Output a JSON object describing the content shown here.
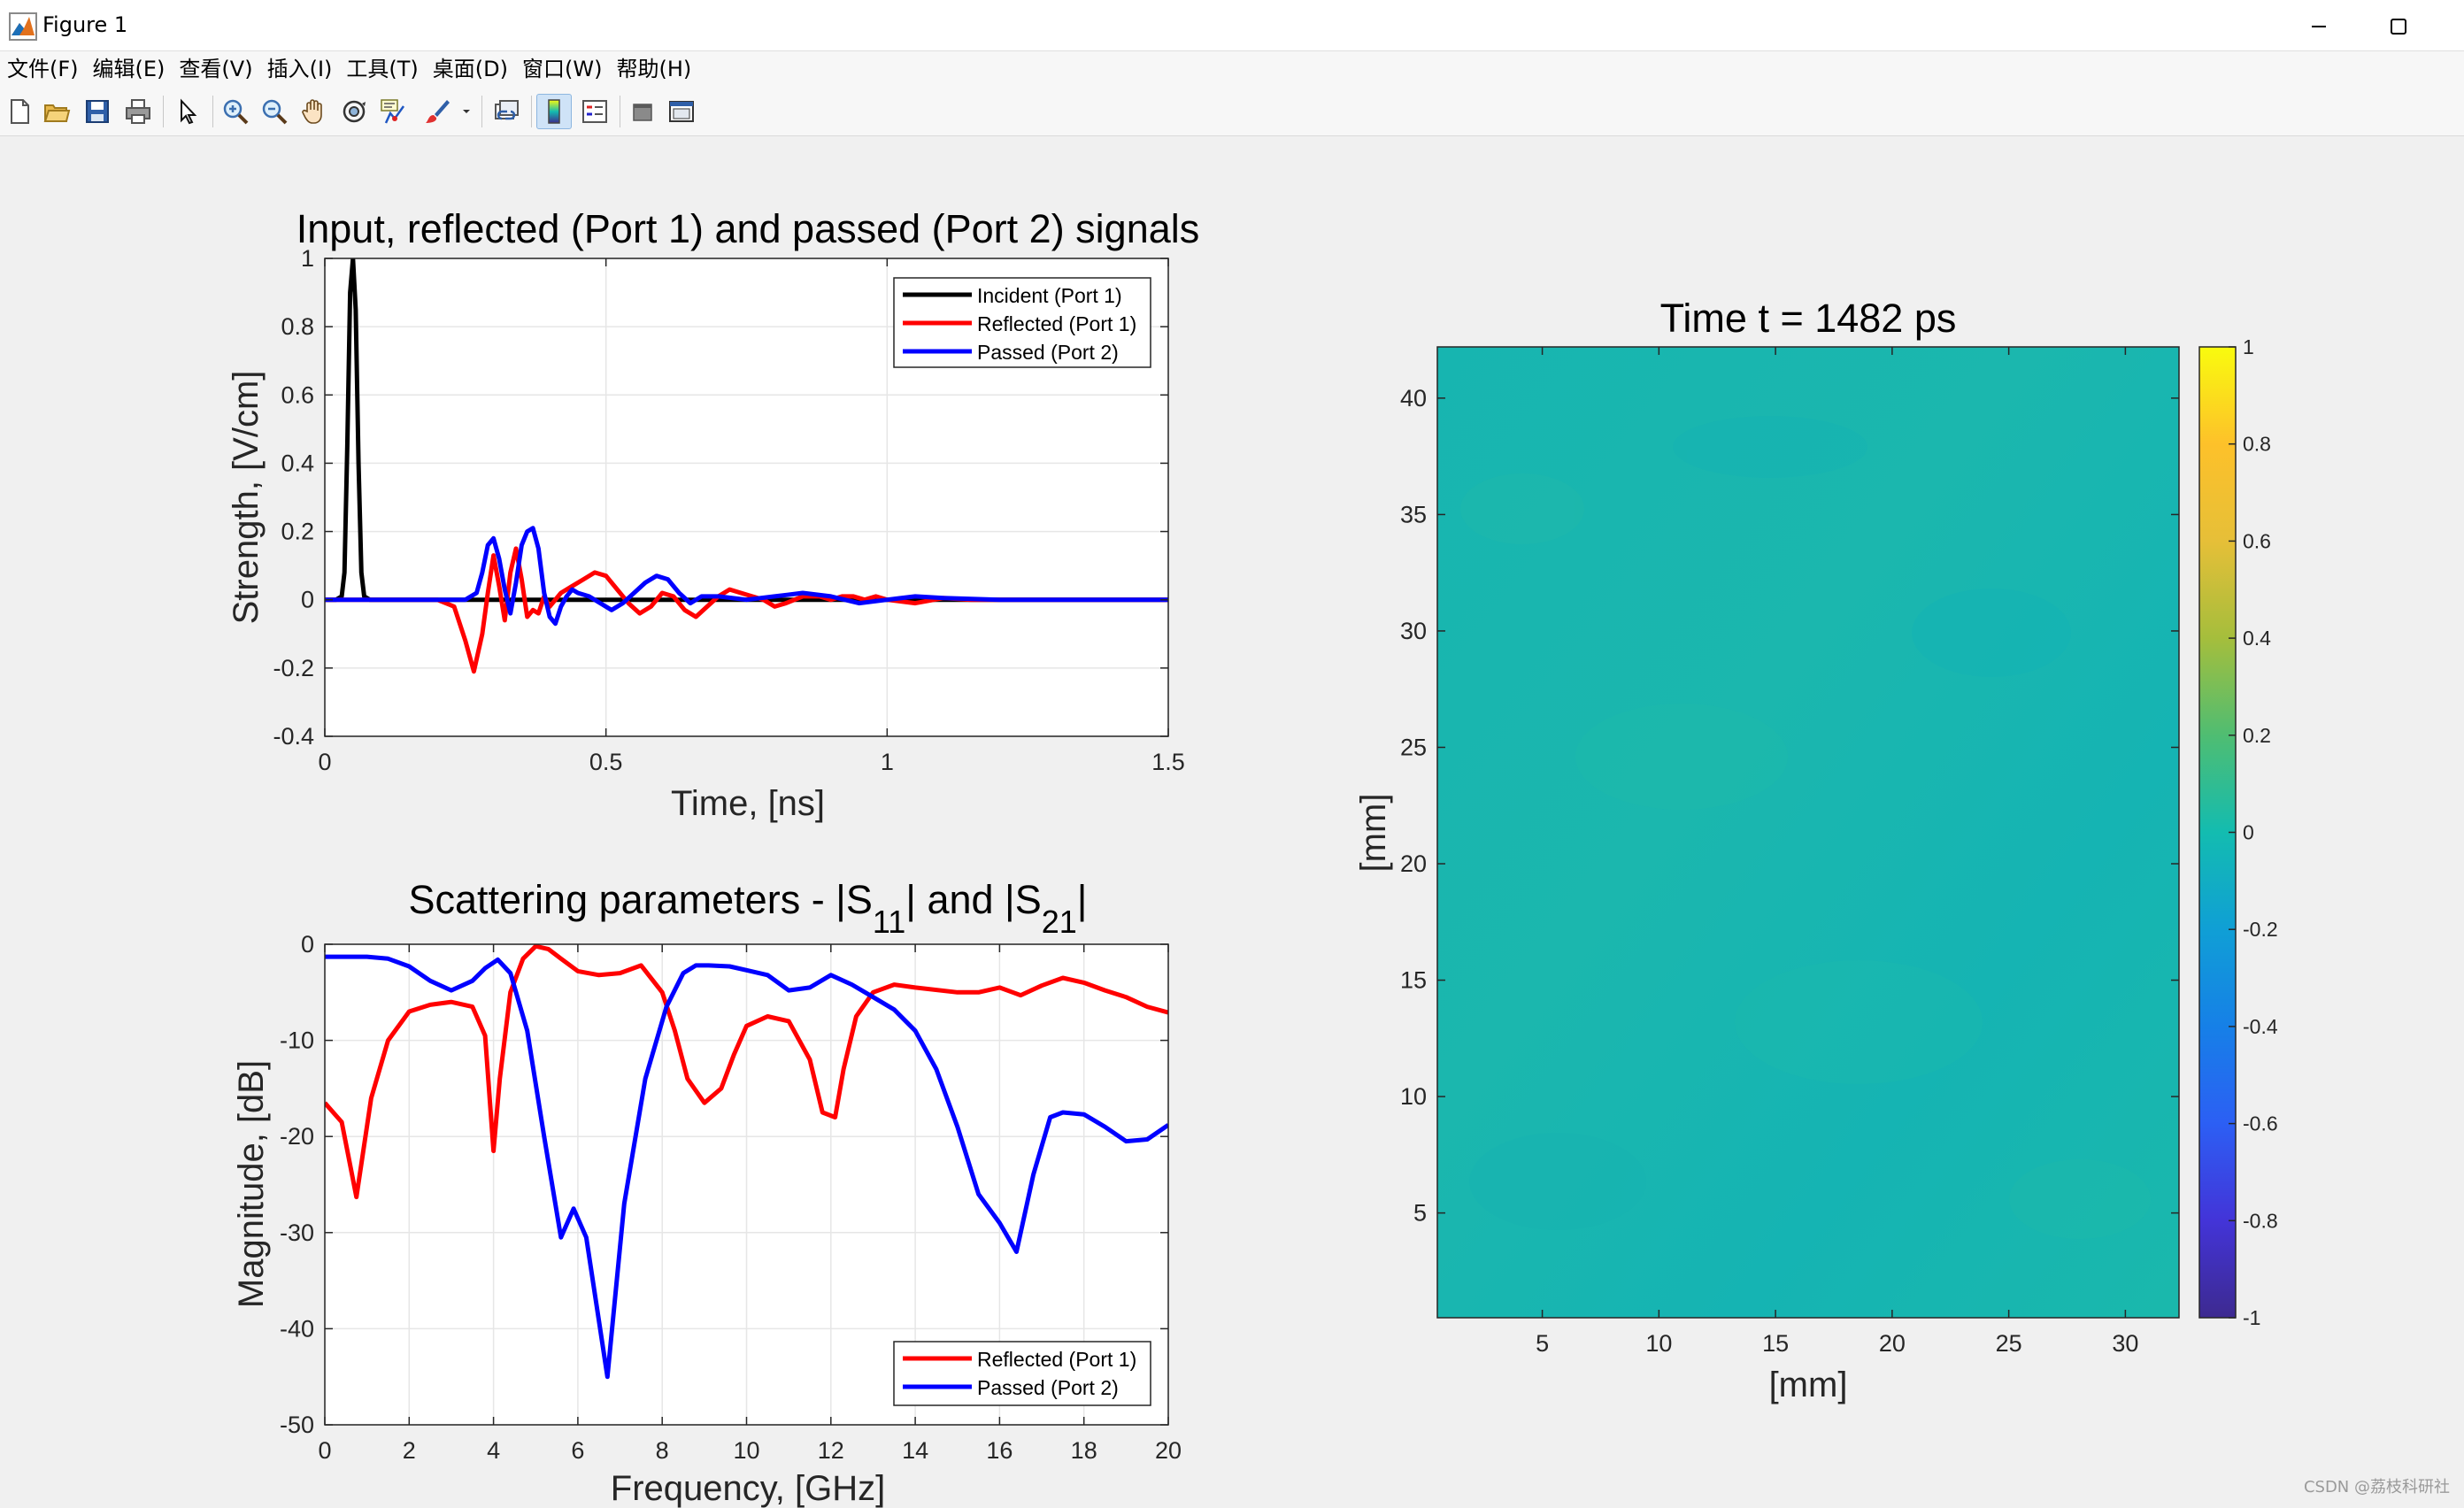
{
  "window": {
    "title": "Figure 1",
    "icon": "matlab-figure-icon",
    "controls": [
      "minimize-icon",
      "maximize-icon"
    ]
  },
  "menu": [
    "文件(F)",
    "编辑(E)",
    "查看(V)",
    "插入(I)",
    "工具(T)",
    "桌面(D)",
    "窗口(W)",
    "帮助(H)"
  ],
  "toolbar": [
    "new-figure-icon",
    "open-file-icon",
    "save-icon",
    "print-icon",
    "pointer-icon",
    "zoom-in-icon",
    "zoom-out-icon",
    "pan-hand-icon",
    "rotate-3d-icon",
    "data-cursor-icon",
    "brush-icon",
    "link-plot-icon",
    "colorbar-toggle-icon",
    "legend-toggle-icon",
    "hide-plot-tools-icon",
    "show-plot-tools-icon"
  ],
  "watermark": "CSDN @荔枝科研社",
  "colors": {
    "incident": "#000000",
    "reflected": "#ff0000",
    "passed": "#0000ff",
    "field": "#1ab6b0"
  },
  "chart_data": [
    {
      "type": "line",
      "title": "Input, reflected (Port 1) and passed (Port 2) signals",
      "xlabel": "Time, [ns]",
      "ylabel": "Strength, [V/cm]",
      "xlim": [
        0,
        1.5
      ],
      "ylim": [
        -0.4,
        1
      ],
      "xticks": [
        0,
        0.5,
        1,
        1.5
      ],
      "xtick_labels": [
        "0",
        "0.5",
        "1",
        "1.5"
      ],
      "yticks": [
        -0.4,
        -0.2,
        0,
        0.2,
        0.4,
        0.6,
        0.8,
        1
      ],
      "ytick_labels": [
        "-0.4",
        "-0.2",
        "0",
        "0.2",
        "0.4",
        "0.6",
        "0.8",
        "1"
      ],
      "grid": true,
      "legend_position": "top-right",
      "series": [
        {
          "name": "Incident (Port 1)",
          "color": "#000000",
          "x": [
            0,
            0.02,
            0.03,
            0.035,
            0.04,
            0.045,
            0.05,
            0.055,
            0.06,
            0.065,
            0.07,
            0.08,
            0.1,
            1.5
          ],
          "y": [
            0,
            0,
            0.01,
            0.08,
            0.45,
            0.9,
            1.0,
            0.85,
            0.4,
            0.08,
            0.01,
            0,
            0,
            0
          ]
        },
        {
          "name": "Reflected (Port 1)",
          "color": "#ff0000",
          "x": [
            0,
            0.2,
            0.23,
            0.25,
            0.265,
            0.28,
            0.29,
            0.3,
            0.31,
            0.32,
            0.33,
            0.34,
            0.35,
            0.36,
            0.37,
            0.38,
            0.39,
            0.4,
            0.42,
            0.44,
            0.46,
            0.48,
            0.5,
            0.52,
            0.54,
            0.56,
            0.58,
            0.6,
            0.62,
            0.64,
            0.66,
            0.68,
            0.7,
            0.72,
            0.74,
            0.76,
            0.78,
            0.8,
            0.82,
            0.85,
            0.88,
            0.9,
            0.92,
            0.94,
            0.96,
            0.98,
            1.0,
            1.05,
            1.1,
            1.15,
            1.2,
            1.3,
            1.4,
            1.5
          ],
          "y": [
            0,
            0,
            -0.02,
            -0.12,
            -0.21,
            -0.1,
            0.02,
            0.13,
            0.04,
            -0.06,
            0.08,
            0.15,
            0.06,
            -0.05,
            -0.03,
            -0.04,
            0.01,
            -0.02,
            0.02,
            0.04,
            0.06,
            0.08,
            0.07,
            0.03,
            -0.01,
            -0.04,
            -0.02,
            0.02,
            0.01,
            -0.03,
            -0.05,
            -0.02,
            0.01,
            0.03,
            0.02,
            0.01,
            0,
            -0.02,
            -0.01,
            0.01,
            0.01,
            0,
            0.01,
            0.01,
            0,
            0.01,
            0,
            -0.01,
            0.005,
            0,
            0,
            0,
            0,
            0
          ]
        },
        {
          "name": "Passed (Port 2)",
          "color": "#0000ff",
          "x": [
            0,
            0.22,
            0.25,
            0.27,
            0.28,
            0.29,
            0.3,
            0.31,
            0.32,
            0.33,
            0.34,
            0.35,
            0.36,
            0.37,
            0.38,
            0.39,
            0.4,
            0.41,
            0.42,
            0.43,
            0.44,
            0.45,
            0.47,
            0.49,
            0.51,
            0.53,
            0.55,
            0.57,
            0.59,
            0.61,
            0.63,
            0.65,
            0.67,
            0.7,
            0.75,
            0.8,
            0.85,
            0.9,
            0.95,
            1.0,
            1.05,
            1.1,
            1.2,
            1.3,
            1.4,
            1.5
          ],
          "y": [
            0,
            0,
            0,
            0.02,
            0.08,
            0.16,
            0.18,
            0.12,
            0.03,
            -0.04,
            0.05,
            0.16,
            0.2,
            0.21,
            0.15,
            0.02,
            -0.05,
            -0.07,
            -0.02,
            0.01,
            0.03,
            0.02,
            0.01,
            -0.01,
            -0.03,
            -0.01,
            0.02,
            0.05,
            0.07,
            0.06,
            0.02,
            -0.01,
            0.01,
            0.01,
            0,
            0.01,
            0.02,
            0.01,
            -0.01,
            0,
            0.01,
            0.005,
            0,
            0,
            0,
            0
          ]
        }
      ]
    },
    {
      "type": "line",
      "title": "Scattering parameters - |S11| and |S21|",
      "title_parts": {
        "a": "Scattering parameters - |S",
        "sub1": "11",
        "b": "| and |S",
        "sub2": "21",
        "c": "|"
      },
      "xlabel": "Frequency, [GHz]",
      "ylabel": "Magnitude, [dB]",
      "xlim": [
        0,
        20
      ],
      "ylim": [
        -50,
        0
      ],
      "xticks": [
        0,
        2,
        4,
        6,
        8,
        10,
        12,
        14,
        16,
        18,
        20
      ],
      "xtick_labels": [
        "0",
        "2",
        "4",
        "6",
        "8",
        "10",
        "12",
        "14",
        "16",
        "18",
        "20"
      ],
      "yticks": [
        -50,
        -40,
        -30,
        -20,
        -10,
        0
      ],
      "ytick_labels": [
        "-50",
        "-40",
        "-30",
        "-20",
        "-10",
        "0"
      ],
      "grid": true,
      "legend_position": "bottom-right",
      "series": [
        {
          "name": "Reflected (Port 1)",
          "color": "#ff0000",
          "x": [
            0,
            0.4,
            0.75,
            1.1,
            1.5,
            2.0,
            2.5,
            3.0,
            3.5,
            3.8,
            4.0,
            4.15,
            4.4,
            4.7,
            5.0,
            5.3,
            5.6,
            6.0,
            6.5,
            7.0,
            7.5,
            8.0,
            8.3,
            8.6,
            9.0,
            9.4,
            9.7,
            10.0,
            10.5,
            11.0,
            11.5,
            11.8,
            12.1,
            12.3,
            12.6,
            13.0,
            13.5,
            14.0,
            15.0,
            15.5,
            16.0,
            16.5,
            17.0,
            17.5,
            18.0,
            18.5,
            19.0,
            19.5,
            20.0
          ],
          "y": [
            -16.5,
            -18.5,
            -26.3,
            -16,
            -10,
            -7,
            -6.3,
            -6,
            -6.5,
            -9.5,
            -21.5,
            -14,
            -5,
            -1.5,
            -0.2,
            -0.5,
            -1.5,
            -2.8,
            -3.2,
            -3,
            -2.2,
            -5,
            -9,
            -14,
            -16.5,
            -15,
            -11.5,
            -8.5,
            -7.5,
            -8,
            -12,
            -17.5,
            -18,
            -13,
            -7.5,
            -5,
            -4.2,
            -4.5,
            -5,
            -5,
            -4.5,
            -5.3,
            -4.3,
            -3.5,
            -4,
            -4.8,
            -5.5,
            -6.5,
            -7.1
          ]
        },
        {
          "name": "Passed (Port 2)",
          "color": "#0000ff",
          "x": [
            0,
            1.0,
            1.5,
            2.0,
            2.5,
            3.0,
            3.5,
            3.8,
            4.1,
            4.4,
            4.8,
            5.2,
            5.6,
            5.9,
            6.2,
            6.7,
            7.1,
            7.6,
            8.1,
            8.5,
            8.8,
            9.1,
            9.6,
            10.0,
            10.5,
            11.0,
            11.5,
            12.0,
            12.5,
            13.0,
            13.5,
            14.0,
            14.5,
            15.0,
            15.5,
            16.0,
            16.4,
            16.8,
            17.2,
            17.5,
            18.0,
            18.5,
            19.0,
            19.5,
            20.0
          ],
          "y": [
            -1.3,
            -1.3,
            -1.5,
            -2.3,
            -3.8,
            -4.8,
            -3.8,
            -2.5,
            -1.6,
            -3,
            -9,
            -20,
            -30.5,
            -27.5,
            -30.5,
            -45,
            -27,
            -14,
            -6.5,
            -3,
            -2.2,
            -2.2,
            -2.3,
            -2.7,
            -3.2,
            -4.8,
            -4.5,
            -3.2,
            -4.2,
            -5.5,
            -6.8,
            -9,
            -13,
            -19,
            -26,
            -29,
            -32,
            -24,
            -18,
            -17.5,
            -17.7,
            -19,
            -20.5,
            -20.3,
            -18.8
          ]
        }
      ]
    },
    {
      "type": "heatmap",
      "title": "Time t = 1482 ps",
      "xlabel": "[mm]",
      "ylabel": "[mm]",
      "xlim": [
        0.5,
        32.3
      ],
      "ylim": [
        0.5,
        42.2
      ],
      "xticks": [
        5,
        10,
        15,
        20,
        25,
        30
      ],
      "xtick_labels": [
        "5",
        "10",
        "15",
        "20",
        "25",
        "30"
      ],
      "yticks": [
        5,
        10,
        15,
        20,
        25,
        30,
        35,
        40
      ],
      "ytick_labels": [
        "5",
        "10",
        "15",
        "20",
        "25",
        "30",
        "35",
        "40"
      ],
      "value_range": [
        -1,
        1
      ],
      "approx_field_value": 0.0,
      "colormap": "parula",
      "colorbar": {
        "ticks": [
          1,
          0.8,
          0.6,
          0.4,
          0.2,
          0,
          -0.2,
          -0.4,
          -0.6,
          -0.8,
          -1
        ],
        "tick_labels": [
          "1",
          "0.8",
          "0.6",
          "0.4",
          "0.2",
          "0",
          "-0.2",
          "-0.4",
          "-0.6",
          "-0.8",
          "-1"
        ],
        "colors_top_to_bottom": [
          "#f9fb0e",
          "#fdc12a",
          "#e6bf38",
          "#a5be3c",
          "#4fbd72",
          "#13bcb0",
          "#109fd5",
          "#1680e7",
          "#2c5ff4",
          "#4334d8",
          "#3d2a90"
        ]
      }
    }
  ]
}
